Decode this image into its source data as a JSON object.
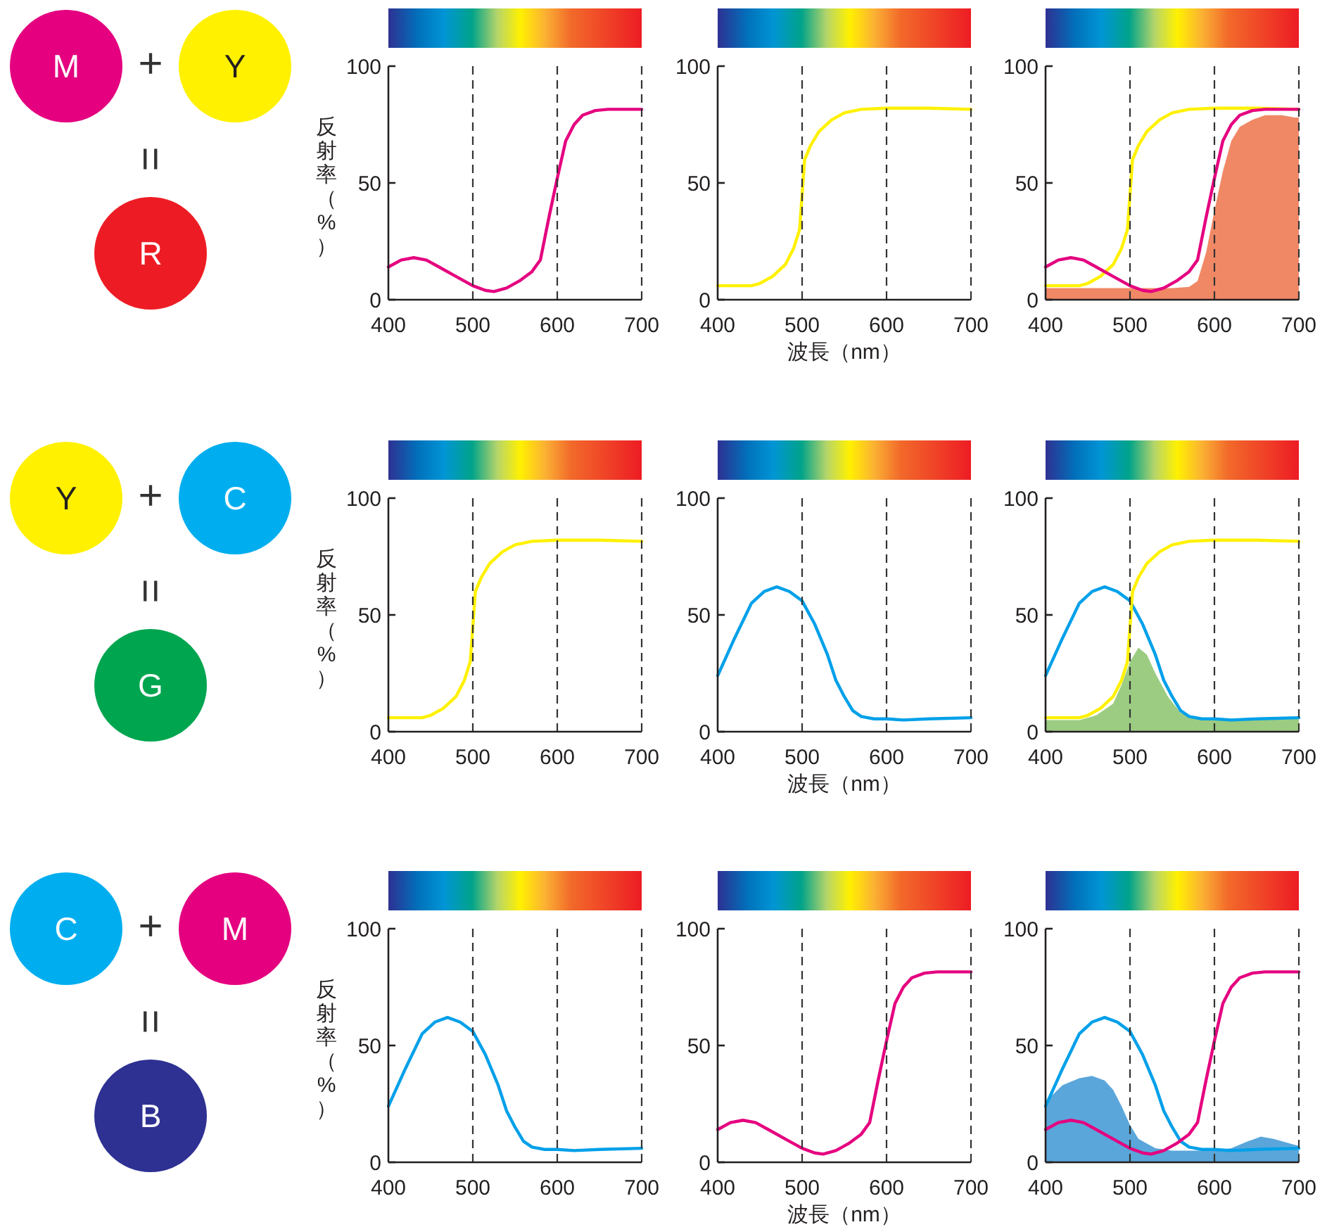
{
  "chart_data": [
    {
      "type": "other",
      "annotations": [
        "M",
        "+",
        "Y",
        "=",
        "R"
      ],
      "colors": [
        "#e4007f",
        "#fff100",
        "#ed1c24"
      ]
    },
    {
      "type": "line",
      "ylabel": "反射率（%）",
      "xlim": [
        400,
        700
      ],
      "ylim": [
        0,
        100
      ],
      "xticks": [
        400,
        500,
        600,
        700
      ],
      "yticks": [
        0,
        50,
        100
      ],
      "ref_lines": [
        {
          "axis": "x",
          "value": 500,
          "line_style": "dashed"
        },
        {
          "axis": "x",
          "value": 600,
          "line_style": "dashed"
        }
      ],
      "series": [
        {
          "color": "#e5007f",
          "x": [
            400,
            415,
            430,
            445,
            460,
            480,
            500,
            515,
            525,
            540,
            555,
            570,
            580,
            590,
            600,
            610,
            620,
            630,
            645,
            660,
            700
          ],
          "values": [
            14,
            17,
            18,
            17,
            14,
            10,
            6,
            4,
            3.5,
            5,
            8,
            12,
            17,
            35,
            52,
            68,
            75,
            79,
            81,
            81.5,
            81.5
          ]
        }
      ]
    },
    {
      "type": "line",
      "xlabel": "波長（nm）",
      "xlim": [
        400,
        700
      ],
      "ylim": [
        0,
        100
      ],
      "xticks": [
        400,
        500,
        600,
        700
      ],
      "yticks": [
        0,
        50,
        100
      ],
      "ref_lines": [
        {
          "axis": "x",
          "value": 500,
          "line_style": "dashed"
        },
        {
          "axis": "x",
          "value": 600,
          "line_style": "dashed"
        }
      ],
      "series": [
        {
          "color": "#fff100",
          "x": [
            400,
            440,
            450,
            465,
            480,
            490,
            497,
            500,
            503,
            510,
            520,
            535,
            550,
            570,
            600,
            650,
            700
          ],
          "values": [
            6,
            6,
            7,
            10,
            15,
            22,
            30,
            45,
            60,
            66,
            72,
            77,
            80,
            81.5,
            82,
            82,
            81.5
          ]
        }
      ]
    },
    {
      "type": "line",
      "xlim": [
        400,
        700
      ],
      "ylim": [
        0,
        100
      ],
      "xticks": [
        400,
        500,
        600,
        700
      ],
      "yticks": [
        0,
        50,
        100
      ],
      "ref_lines": [
        {
          "axis": "x",
          "value": 500,
          "line_style": "dashed"
        },
        {
          "axis": "x",
          "value": 600,
          "line_style": "dashed"
        }
      ],
      "series": [
        {
          "type": "area",
          "color": "#f08866",
          "x": [
            400,
            550,
            570,
            580,
            590,
            600,
            610,
            620,
            630,
            645,
            660,
            680,
            695,
            700
          ],
          "values": [
            5,
            5,
            5.5,
            8,
            20,
            38,
            55,
            68,
            74,
            77,
            79,
            79,
            78,
            78
          ]
        },
        {
          "color": "#fff100",
          "x": [
            400,
            440,
            450,
            465,
            480,
            490,
            497,
            500,
            503,
            510,
            520,
            535,
            550,
            570,
            600,
            650,
            700
          ],
          "values": [
            6,
            6,
            7,
            10,
            15,
            22,
            30,
            45,
            60,
            66,
            72,
            77,
            80,
            81.5,
            82,
            82,
            81.5
          ]
        },
        {
          "color": "#e5007f",
          "x": [
            400,
            415,
            430,
            445,
            460,
            480,
            500,
            515,
            525,
            540,
            555,
            570,
            580,
            590,
            600,
            610,
            620,
            630,
            645,
            660,
            700
          ],
          "values": [
            14,
            17,
            18,
            17,
            14,
            10,
            6,
            4,
            3.5,
            5,
            8,
            12,
            17,
            35,
            52,
            68,
            75,
            79,
            81,
            81.5,
            81.5
          ]
        }
      ]
    },
    {
      "type": "other",
      "annotations": [
        "Y",
        "+",
        "C",
        "=",
        "G"
      ],
      "colors": [
        "#fff100",
        "#00aeef",
        "#00a54f"
      ]
    },
    {
      "type": "line",
      "ylabel": "反射率（%）",
      "xlim": [
        400,
        700
      ],
      "ylim": [
        0,
        100
      ],
      "xticks": [
        400,
        500,
        600,
        700
      ],
      "yticks": [
        0,
        50,
        100
      ],
      "ref_lines": [
        {
          "axis": "x",
          "value": 500,
          "line_style": "dashed"
        },
        {
          "axis": "x",
          "value": 600,
          "line_style": "dashed"
        }
      ],
      "series": [
        {
          "color": "#fff100",
          "x": [
            400,
            440,
            450,
            465,
            480,
            490,
            497,
            500,
            503,
            510,
            520,
            535,
            550,
            570,
            600,
            650,
            700
          ],
          "values": [
            6,
            6,
            7,
            10,
            15,
            22,
            30,
            45,
            60,
            66,
            72,
            77,
            80,
            81.5,
            82,
            82,
            81.5
          ]
        }
      ]
    },
    {
      "type": "line",
      "xlabel": "波長（nm）",
      "xlim": [
        400,
        700
      ],
      "ylim": [
        0,
        100
      ],
      "xticks": [
        400,
        500,
        600,
        700
      ],
      "yticks": [
        0,
        50,
        100
      ],
      "ref_lines": [
        {
          "axis": "x",
          "value": 500,
          "line_style": "dashed"
        },
        {
          "axis": "x",
          "value": 600,
          "line_style": "dashed"
        }
      ],
      "series": [
        {
          "color": "#00a0e9",
          "x": [
            400,
            420,
            440,
            455,
            470,
            485,
            500,
            515,
            530,
            540,
            550,
            560,
            570,
            585,
            600,
            620,
            650,
            700
          ],
          "values": [
            24,
            40,
            55,
            60,
            62,
            60,
            56,
            46,
            33,
            22,
            15,
            9,
            6.5,
            5.5,
            5.5,
            5,
            5.5,
            6
          ]
        }
      ]
    },
    {
      "type": "line",
      "xlim": [
        400,
        700
      ],
      "ylim": [
        0,
        100
      ],
      "xticks": [
        400,
        500,
        600,
        700
      ],
      "yticks": [
        0,
        50,
        100
      ],
      "ref_lines": [
        {
          "axis": "x",
          "value": 500,
          "line_style": "dashed"
        },
        {
          "axis": "x",
          "value": 600,
          "line_style": "dashed"
        }
      ],
      "series": [
        {
          "type": "area",
          "color": "#9ccc82",
          "x": [
            400,
            440,
            460,
            480,
            490,
            500,
            510,
            520,
            530,
            545,
            560,
            575,
            600,
            650,
            700
          ],
          "values": [
            5,
            5,
            7,
            12,
            20,
            30,
            36,
            33,
            25,
            15,
            8,
            6,
            5,
            5.5,
            6
          ]
        },
        {
          "color": "#00a0e9",
          "x": [
            400,
            420,
            440,
            455,
            470,
            485,
            500,
            515,
            530,
            540,
            550,
            560,
            570,
            585,
            600,
            620,
            650,
            700
          ],
          "values": [
            24,
            40,
            55,
            60,
            62,
            60,
            56,
            46,
            33,
            22,
            15,
            9,
            6.5,
            5.5,
            5.5,
            5,
            5.5,
            6
          ]
        },
        {
          "color": "#fff100",
          "x": [
            400,
            440,
            450,
            465,
            480,
            490,
            497,
            500,
            503,
            510,
            520,
            535,
            550,
            570,
            600,
            650,
            700
          ],
          "values": [
            6,
            6,
            7,
            10,
            15,
            22,
            30,
            45,
            60,
            66,
            72,
            77,
            80,
            81.5,
            82,
            82,
            81.5
          ]
        }
      ]
    },
    {
      "type": "other",
      "annotations": [
        "C",
        "+",
        "M",
        "=",
        "B"
      ],
      "colors": [
        "#00aeef",
        "#e4007f",
        "#2e3192"
      ]
    },
    {
      "type": "line",
      "ylabel": "反射率（%）",
      "xlim": [
        400,
        700
      ],
      "ylim": [
        0,
        100
      ],
      "xticks": [
        400,
        500,
        600,
        700
      ],
      "yticks": [
        0,
        50,
        100
      ],
      "ref_lines": [
        {
          "axis": "x",
          "value": 500,
          "line_style": "dashed"
        },
        {
          "axis": "x",
          "value": 600,
          "line_style": "dashed"
        }
      ],
      "series": [
        {
          "color": "#00a0e9",
          "x": [
            400,
            420,
            440,
            455,
            470,
            485,
            500,
            515,
            530,
            540,
            550,
            560,
            570,
            585,
            600,
            620,
            650,
            700
          ],
          "values": [
            24,
            40,
            55,
            60,
            62,
            60,
            56,
            46,
            33,
            22,
            15,
            9,
            6.5,
            5.5,
            5.5,
            5,
            5.5,
            6
          ]
        }
      ]
    },
    {
      "type": "line",
      "xlabel": "波長（nm）",
      "xlim": [
        400,
        700
      ],
      "ylim": [
        0,
        100
      ],
      "xticks": [
        400,
        500,
        600,
        700
      ],
      "yticks": [
        0,
        50,
        100
      ],
      "ref_lines": [
        {
          "axis": "x",
          "value": 500,
          "line_style": "dashed"
        },
        {
          "axis": "x",
          "value": 600,
          "line_style": "dashed"
        }
      ],
      "series": [
        {
          "color": "#e5007f",
          "x": [
            400,
            415,
            430,
            445,
            460,
            480,
            500,
            515,
            525,
            540,
            555,
            570,
            580,
            590,
            600,
            610,
            620,
            630,
            645,
            660,
            700
          ],
          "values": [
            14,
            17,
            18,
            17,
            14,
            10,
            6,
            4,
            3.5,
            5,
            8,
            12,
            17,
            35,
            52,
            68,
            75,
            79,
            81,
            81.5,
            81.5
          ]
        }
      ]
    },
    {
      "type": "line",
      "xlim": [
        400,
        700
      ],
      "ylim": [
        0,
        100
      ],
      "xticks": [
        400,
        500,
        600,
        700
      ],
      "yticks": [
        0,
        50,
        100
      ],
      "ref_lines": [
        {
          "axis": "x",
          "value": 500,
          "line_style": "dashed"
        },
        {
          "axis": "x",
          "value": 600,
          "line_style": "dashed"
        }
      ],
      "series": [
        {
          "type": "area",
          "color": "#5aa6da",
          "x": [
            400,
            420,
            440,
            455,
            470,
            480,
            490,
            500,
            510,
            530,
            550,
            600,
            620,
            640,
            655,
            670,
            690,
            700
          ],
          "values": [
            26,
            33,
            36,
            37,
            35,
            31,
            24,
            16,
            10,
            6,
            5,
            5,
            6,
            9,
            11,
            10,
            8,
            7
          ]
        },
        {
          "color": "#00a0e9",
          "x": [
            400,
            420,
            440,
            455,
            470,
            485,
            500,
            515,
            530,
            540,
            550,
            560,
            570,
            585,
            600,
            620,
            650,
            700
          ],
          "values": [
            24,
            40,
            55,
            60,
            62,
            60,
            56,
            46,
            33,
            22,
            15,
            9,
            6.5,
            5.5,
            5.5,
            5,
            5.5,
            6
          ]
        },
        {
          "color": "#e5007f",
          "x": [
            400,
            415,
            430,
            445,
            460,
            480,
            500,
            515,
            525,
            540,
            555,
            570,
            580,
            590,
            600,
            610,
            620,
            630,
            645,
            660,
            700
          ],
          "values": [
            14,
            17,
            18,
            17,
            14,
            10,
            6,
            4,
            3.5,
            5,
            8,
            12,
            17,
            35,
            52,
            68,
            75,
            79,
            81,
            81.5,
            81.5
          ]
        }
      ]
    }
  ]
}
